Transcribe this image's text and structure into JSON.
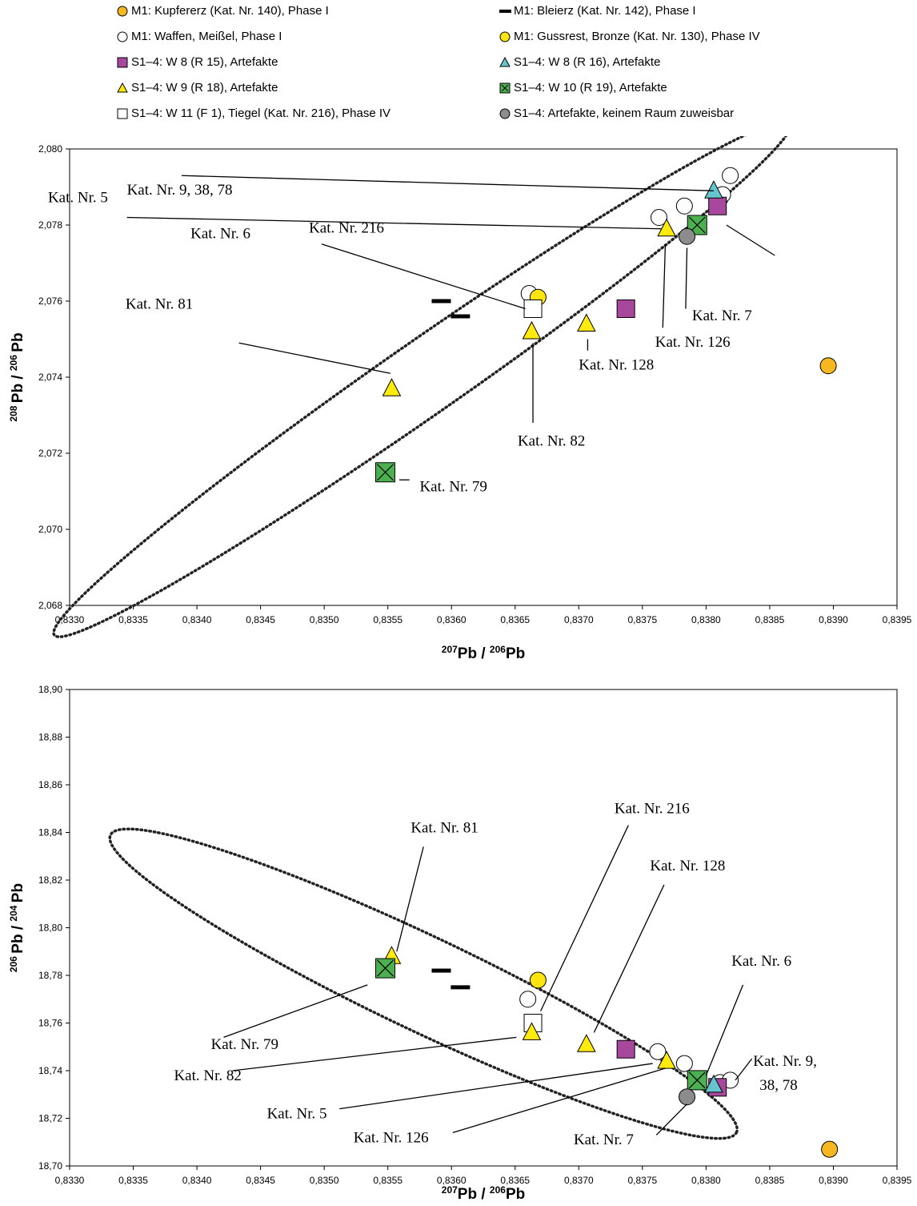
{
  "legend": [
    {
      "key": "kupfererz",
      "label": "M1: Kupfererz (Kat. Nr. 140), Phase I"
    },
    {
      "key": "bleierz",
      "label": "M1: Bleierz (Kat. Nr. 142), Phase I"
    },
    {
      "key": "waffen",
      "label": "M1: Waffen, Meißel, Phase I"
    },
    {
      "key": "gussrest",
      "label": "M1: Gussrest, Bronze (Kat. Nr. 130), Phase IV"
    },
    {
      "key": "w8r15",
      "label": "S1–4: W 8 (R 15), Artefakte"
    },
    {
      "key": "w8r16",
      "label": "S1–4: W 8 (R 16), Artefakte"
    },
    {
      "key": "w9r18",
      "label": "S1–4: W 9 (R 18), Artefakte"
    },
    {
      "key": "w10r19",
      "label": "S1–4: W 10 (R 19), Artefakte"
    },
    {
      "key": "tiegel",
      "label": "S1–4: W 11 (F 1), Tiegel (Kat. Nr. 216), Phase IV"
    },
    {
      "key": "keinraum",
      "label": "S1–4: Artefakte, keinem Raum zuweisbar"
    }
  ],
  "styles": {
    "kupfererz": {
      "shape": "circle",
      "fill": "#F5B820",
      "stroke": "#000000"
    },
    "bleierz": {
      "shape": "dash",
      "fill": "#000000",
      "stroke": "#000000"
    },
    "waffen": {
      "shape": "circle",
      "fill": "#FFFFFF",
      "stroke": "#000000"
    },
    "gussrest": {
      "shape": "circle",
      "fill": "#FFE50F",
      "stroke": "#000000"
    },
    "w8r15": {
      "shape": "square",
      "fill": "#A8489C",
      "stroke": "#000000"
    },
    "w8r16": {
      "shape": "triangle",
      "fill": "#66C4CF",
      "stroke": "#000000"
    },
    "w9r18": {
      "shape": "triangle",
      "fill": "#FFEA10",
      "stroke": "#000000"
    },
    "w10r19": {
      "shape": "squarex",
      "fill": "#4CB050",
      "stroke": "#000000"
    },
    "tiegel": {
      "shape": "square",
      "fill": "#FFFFFF",
      "stroke": "#000000"
    },
    "keinraum": {
      "shape": "circle",
      "fill": "#8C8C8C",
      "stroke": "#000000"
    }
  },
  "chart_data": [
    {
      "type": "scatter",
      "xlabel": "207Pb / 206Pb",
      "ylabel": "208 Pb / 206 Pb",
      "xlim": [
        0.833,
        0.8395
      ],
      "ylim": [
        2.068,
        2.08
      ],
      "x_ticks": [
        "0,8330",
        "0,8335",
        "0,8340",
        "0,8345",
        "0,8350",
        "0,8355",
        "0,8360",
        "0,8365",
        "0,8370",
        "0,8375",
        "0,8380",
        "0,8385",
        "0,8390",
        "0,8395"
      ],
      "y_ticks": [
        "2,068",
        "2,070",
        "2,072",
        "2,074",
        "2,076",
        "2,078",
        "2,080"
      ],
      "points": [
        {
          "series": "kupfererz",
          "x": 0.83896,
          "y": 2.0743
        },
        {
          "series": "bleierz",
          "x": 0.83592,
          "y": 2.076
        },
        {
          "series": "bleierz",
          "x": 0.83607,
          "y": 2.0756
        },
        {
          "series": "waffen",
          "x": 0.83661,
          "y": 2.0762
        },
        {
          "series": "waffen",
          "x": 0.83763,
          "y": 2.0782
        },
        {
          "series": "waffen",
          "x": 0.83783,
          "y": 2.0785
        },
        {
          "series": "waffen",
          "x": 0.83811,
          "y": 2.0787
        },
        {
          "series": "waffen",
          "x": 0.83819,
          "y": 2.0793
        },
        {
          "series": "waffen",
          "x": 0.83813,
          "y": 2.0788
        },
        {
          "series": "gussrest",
          "x": 0.83668,
          "y": 2.0761
        },
        {
          "series": "tiegel",
          "x": 0.83664,
          "y": 2.0758
        },
        {
          "series": "w8r15",
          "x": 0.83737,
          "y": 2.0758
        },
        {
          "series": "w8r15",
          "x": 0.83809,
          "y": 2.0785
        },
        {
          "series": "w8r16",
          "x": 0.83806,
          "y": 2.0789
        },
        {
          "series": "w9r18",
          "x": 0.83553,
          "y": 2.0737
        },
        {
          "series": "w9r18",
          "x": 0.83663,
          "y": 2.0752
        },
        {
          "series": "w9r18",
          "x": 0.83706,
          "y": 2.0754
        },
        {
          "series": "w9r18",
          "x": 0.83769,
          "y": 2.0779
        },
        {
          "series": "w10r19",
          "x": 0.83548,
          "y": 2.0715
        },
        {
          "series": "w10r19",
          "x": 0.83793,
          "y": 2.078
        },
        {
          "series": "keinraum",
          "x": 0.83785,
          "y": 2.0777
        }
      ],
      "ellipse": {
        "cx": 0.83577,
        "cy": 2.07395,
        "semi_major_px": 560,
        "semi_minor_px": 46,
        "angle_deg": -34.8
      },
      "annotations": [
        {
          "text": "Kat. Nr. 9, 38, 78",
          "x": 0.83345,
          "y": 2.0788,
          "tx": 0.83388,
          "ty": 2.0793,
          "px": 0.83806,
          "py": 2.0789,
          "anchor": "start"
        },
        {
          "text": "Kat. Nr. 5",
          "x": 0.83283,
          "y": 2.0786,
          "tx": 0.83345,
          "ty": 2.0782,
          "px": 0.83765,
          "py": 2.0779,
          "anchor": "start"
        },
        {
          "text": "Kat. Nr. 6",
          "x": 0.83395,
          "y": 2.07765,
          "tx": 0.83854,
          "ty": 2.0772,
          "px": 0.83816,
          "py": 2.078,
          "anchor": "start"
        },
        {
          "text": "Kat. Nr. 216",
          "x": 0.83488,
          "y": 2.0778,
          "tx": 0.83498,
          "ty": 2.0775,
          "px": 0.83658,
          "py": 2.0758,
          "anchor": "start"
        },
        {
          "text": "Kat. Nr. 81",
          "x": 0.83397,
          "y": 2.0758,
          "tx": 0.83433,
          "ty": 2.0749,
          "px": 0.83552,
          "py": 2.0741,
          "anchor": "end"
        },
        {
          "text": "Kat. Nr. 7",
          "x": 0.83789,
          "y": 2.0755,
          "tx": 0.83784,
          "ty": 2.0758,
          "px": 0.83785,
          "py": 2.0774,
          "anchor": "start"
        },
        {
          "text": "Kat. Nr. 126",
          "x": 0.8376,
          "y": 2.0748,
          "tx": 0.83766,
          "ty": 2.0753,
          "px": 0.83768,
          "py": 2.0775,
          "anchor": "start"
        },
        {
          "text": "Kat. Nr. 128",
          "x": 0.837,
          "y": 2.0742,
          "tx": 0.83707,
          "ty": 2.0747,
          "px": 0.83707,
          "py": 2.075,
          "anchor": "start"
        },
        {
          "text": "Kat. Nr. 82",
          "x": 0.83652,
          "y": 2.0722,
          "tx": 0.83664,
          "ty": 2.0728,
          "px": 0.83664,
          "py": 2.0749,
          "anchor": "start"
        },
        {
          "text": "Kat. Nr. 79",
          "x": 0.83575,
          "y": 2.071,
          "tx": 0.83567,
          "ty": 2.0713,
          "px": 0.83559,
          "py": 2.0713,
          "anchor": "start"
        }
      ]
    },
    {
      "type": "scatter",
      "xlabel": "207Pb / 206Pb",
      "ylabel": "206 Pb / 204 Pb",
      "xlim": [
        0.833,
        0.8395
      ],
      "ylim": [
        18.7,
        18.9
      ],
      "x_ticks": [
        "0,8330",
        "0,8335",
        "0,8340",
        "0,8345",
        "0,8350",
        "0,8355",
        "0,8360",
        "0,8365",
        "0,8370",
        "0,8375",
        "0,8380",
        "0,8385",
        "0,8390",
        "0,8395"
      ],
      "y_ticks": [
        "18,70",
        "18,72",
        "18,74",
        "18,76",
        "18,78",
        "18,80",
        "18,82",
        "18,84",
        "18,86",
        "18,88",
        "18,90"
      ],
      "points": [
        {
          "series": "kupfererz",
          "x": 0.83897,
          "y": 18.707
        },
        {
          "series": "bleierz",
          "x": 0.83592,
          "y": 18.782
        },
        {
          "series": "bleierz",
          "x": 0.83607,
          "y": 18.775
        },
        {
          "series": "waffen",
          "x": 0.8366,
          "y": 18.77
        },
        {
          "series": "waffen",
          "x": 0.83762,
          "y": 18.748
        },
        {
          "series": "waffen",
          "x": 0.83783,
          "y": 18.743
        },
        {
          "series": "waffen",
          "x": 0.83811,
          "y": 18.735
        },
        {
          "series": "waffen",
          "x": 0.83819,
          "y": 18.736
        },
        {
          "series": "gussrest",
          "x": 0.83668,
          "y": 18.778
        },
        {
          "series": "tiegel",
          "x": 0.83664,
          "y": 18.76
        },
        {
          "series": "w8r15",
          "x": 0.83737,
          "y": 18.749
        },
        {
          "series": "w8r15",
          "x": 0.83809,
          "y": 18.733
        },
        {
          "series": "w8r16",
          "x": 0.83806,
          "y": 18.734
        },
        {
          "series": "w9r18",
          "x": 0.83553,
          "y": 18.788
        },
        {
          "series": "w9r18",
          "x": 0.83663,
          "y": 18.756
        },
        {
          "series": "w9r18",
          "x": 0.83706,
          "y": 18.751
        },
        {
          "series": "w9r18",
          "x": 0.83769,
          "y": 18.744
        },
        {
          "series": "w10r19",
          "x": 0.83548,
          "y": 18.783
        },
        {
          "series": "w10r19",
          "x": 0.83793,
          "y": 18.736
        },
        {
          "series": "keinraum",
          "x": 0.83785,
          "y": 18.729
        }
      ],
      "ellipse": {
        "cx": 0.83578,
        "cy": 18.7765,
        "semi_major_px": 433,
        "semi_minor_px": 59,
        "angle_deg": 25.4
      },
      "annotations": [
        {
          "text": "Kat. Nr. 81",
          "x": 0.83568,
          "y": 18.84,
          "tx": 0.83578,
          "ty": 18.834,
          "px": 0.83557,
          "py": 18.79,
          "anchor": "start"
        },
        {
          "text": "Kat. Nr. 216",
          "x": 0.83728,
          "y": 18.848,
          "tx": 0.83739,
          "ty": 18.843,
          "px": 0.8367,
          "py": 18.765,
          "anchor": "start"
        },
        {
          "text": "Kat. Nr. 128",
          "x": 0.83756,
          "y": 18.824,
          "tx": 0.83767,
          "ty": 18.818,
          "px": 0.83712,
          "py": 18.756,
          "anchor": "start"
        },
        {
          "text": "Kat. Nr. 6",
          "x": 0.8382,
          "y": 18.784,
          "tx": 0.83829,
          "ty": 18.776,
          "px": 0.838,
          "py": 18.738,
          "anchor": "start"
        },
        {
          "text": "Kat. Nr. 9,",
          "x": 0.83837,
          "y": 18.742,
          "tx": 0.83836,
          "ty": 18.745,
          "px": 0.83823,
          "py": 18.736,
          "anchor": "start"
        },
        {
          "text": "38, 78",
          "x": 0.83842,
          "y": 18.732,
          "tx": null,
          "ty": null,
          "px": null,
          "py": null,
          "anchor": "start"
        },
        {
          "text": "Kat. Nr. 79",
          "x": 0.83411,
          "y": 18.749,
          "tx": 0.83421,
          "ty": 18.754,
          "px": 0.83534,
          "py": 18.776,
          "anchor": "start"
        },
        {
          "text": "Kat. Nr. 82",
          "x": 0.83382,
          "y": 18.736,
          "tx": 0.83428,
          "ty": 18.74,
          "px": 0.83651,
          "py": 18.754,
          "anchor": "start"
        },
        {
          "text": "Kat. Nr. 5",
          "x": 0.83455,
          "y": 18.72,
          "tx": 0.83512,
          "ty": 18.724,
          "px": 0.83758,
          "py": 18.743,
          "anchor": "start"
        },
        {
          "text": "Kat. Nr. 126",
          "x": 0.83523,
          "y": 18.71,
          "tx": 0.83601,
          "ty": 18.714,
          "px": 0.83768,
          "py": 18.741,
          "anchor": "start"
        },
        {
          "text": "Kat. Nr. 7",
          "x": 0.83696,
          "y": 18.709,
          "tx": 0.83761,
          "ty": 18.713,
          "px": 0.83785,
          "py": 18.726,
          "anchor": "start"
        }
      ]
    }
  ]
}
